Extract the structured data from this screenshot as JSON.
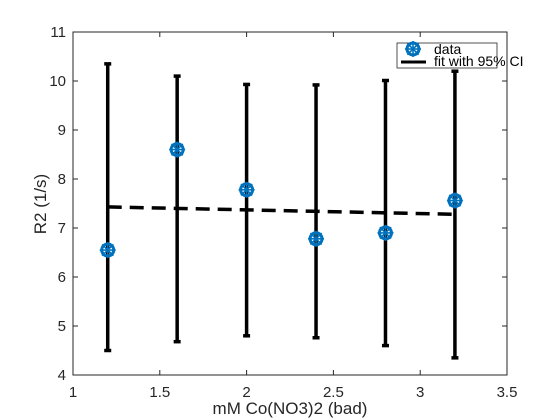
{
  "chart_data": {
    "type": "scatter",
    "xlabel": "mM Co(NO3)2 (bad)",
    "ylabel": "R2 (1/s)",
    "xlim": [
      1,
      3.5
    ],
    "ylim": [
      4,
      11
    ],
    "xticks": [
      1,
      1.5,
      2,
      2.5,
      3,
      3.5
    ],
    "yticks": [
      4,
      5,
      6,
      7,
      8,
      9,
      10,
      11
    ],
    "xtick_labels": [
      "1",
      "1.5",
      "2",
      "2.5",
      "3",
      "3.5"
    ],
    "ytick_labels": [
      "4",
      "5",
      "6",
      "7",
      "8",
      "9",
      "10",
      "11"
    ],
    "grid": false,
    "legend_position": "top-right",
    "series": [
      {
        "name": "data",
        "marker": "asterisk-circle",
        "color": "#0072BD",
        "x": [
          1.2,
          1.6,
          2.0,
          2.4,
          2.8,
          3.2
        ],
        "y": [
          6.55,
          8.6,
          7.78,
          6.78,
          6.9,
          7.56
        ]
      },
      {
        "name": "fit with 95% CI",
        "style": "dashed",
        "color": "#000000",
        "x": [
          1.2,
          3.2
        ],
        "y": [
          7.43,
          7.28
        ],
        "errorbars": {
          "x": [
            1.2,
            1.6,
            2.0,
            2.4,
            2.8,
            3.2
          ],
          "lower": [
            4.5,
            4.68,
            4.8,
            4.76,
            4.6,
            4.35
          ],
          "upper": [
            10.35,
            10.1,
            9.93,
            9.92,
            10.01,
            10.2
          ]
        }
      }
    ]
  }
}
